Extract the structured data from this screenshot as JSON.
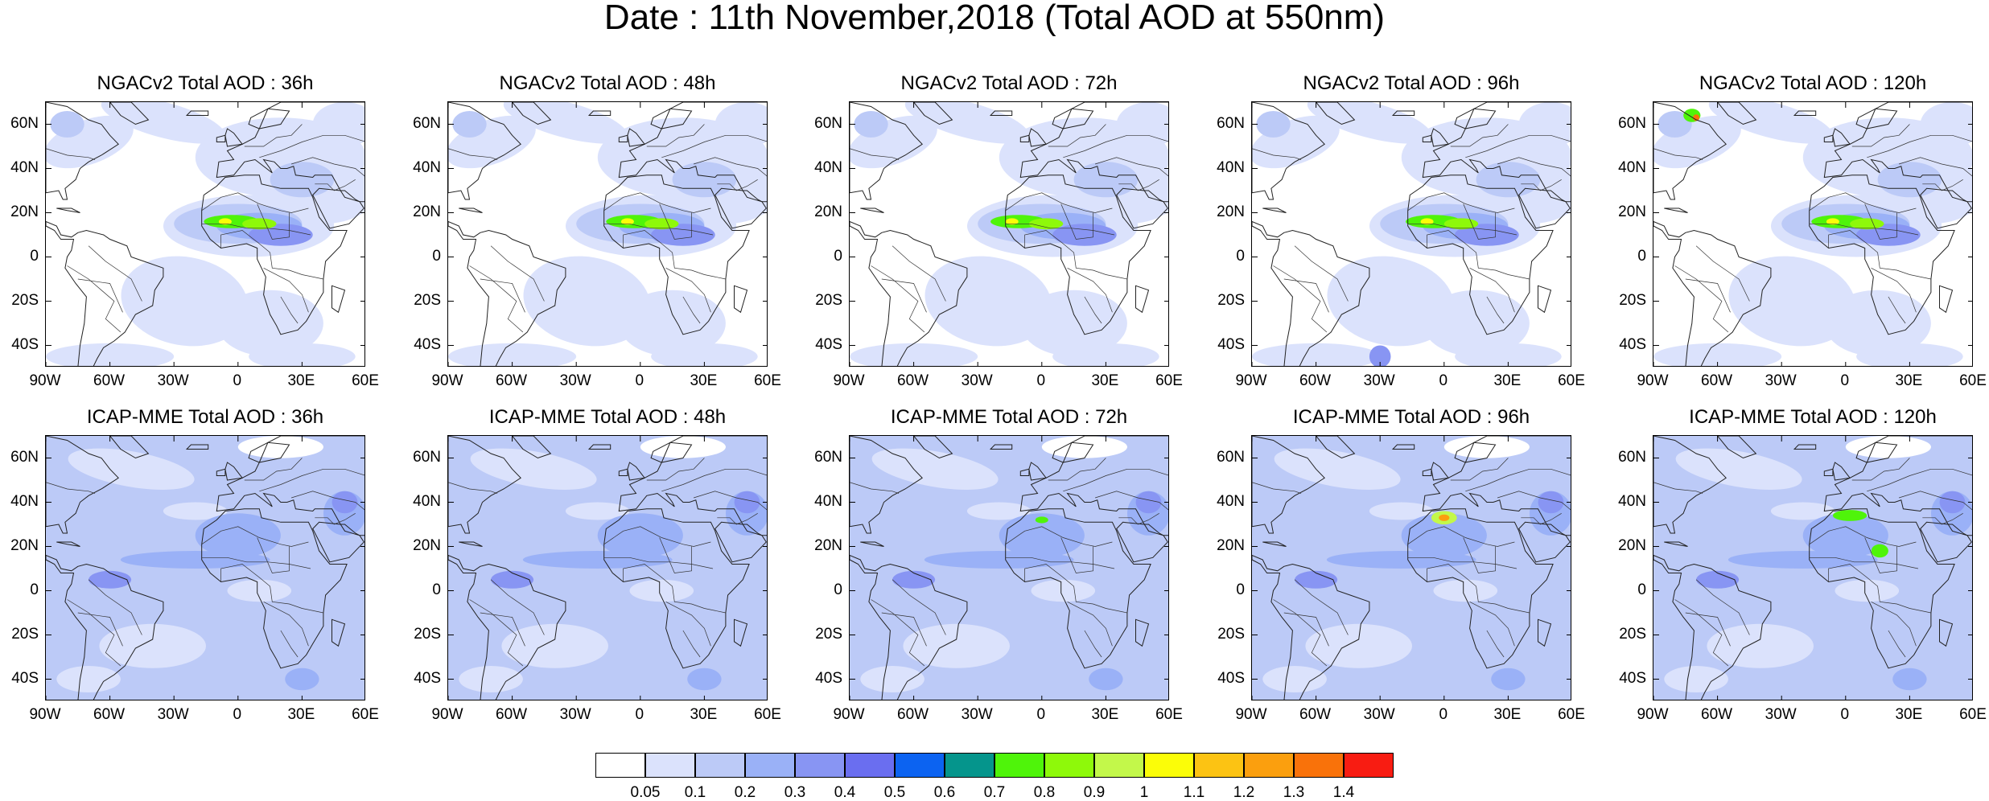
{
  "title": "Date : 11th November,2018 (Total AOD at 550nm)",
  "lat_labels": [
    "60N",
    "40N",
    "20N",
    "0",
    "20S",
    "40S"
  ],
  "lon_labels": [
    "90W",
    "60W",
    "30W",
    "0",
    "30E",
    "60E"
  ],
  "panels": [
    {
      "title": "NGACv2 Total AOD : 36h",
      "model": "NGACv2",
      "lead": "36h",
      "row": 0,
      "col": 0
    },
    {
      "title": "NGACv2 Total AOD : 48h",
      "model": "NGACv2",
      "lead": "48h",
      "row": 0,
      "col": 1
    },
    {
      "title": "NGACv2 Total AOD : 72h",
      "model": "NGACv2",
      "lead": "72h",
      "row": 0,
      "col": 2
    },
    {
      "title": "NGACv2 Total AOD : 96h",
      "model": "NGACv2",
      "lead": "96h",
      "row": 0,
      "col": 3
    },
    {
      "title": "NGACv2 Total AOD : 120h",
      "model": "NGACv2",
      "lead": "120h",
      "row": 0,
      "col": 4
    },
    {
      "title": "ICAP-MME Total AOD : 36h",
      "model": "ICAP-MME",
      "lead": "36h",
      "row": 1,
      "col": 0
    },
    {
      "title": "ICAP-MME Total AOD : 48h",
      "model": "ICAP-MME",
      "lead": "48h",
      "row": 1,
      "col": 1
    },
    {
      "title": "ICAP-MME Total AOD : 72h",
      "model": "ICAP-MME",
      "lead": "72h",
      "row": 1,
      "col": 2
    },
    {
      "title": "ICAP-MME Total AOD : 96h",
      "model": "ICAP-MME",
      "lead": "96h",
      "row": 1,
      "col": 3
    },
    {
      "title": "ICAP-MME Total AOD : 120h",
      "model": "ICAP-MME",
      "lead": "120h",
      "row": 1,
      "col": 4
    }
  ],
  "colorbar": {
    "colors": [
      "#ffffff",
      "#dbe2fc",
      "#bccaf7",
      "#9ab1f7",
      "#8895f3",
      "#6a6ef0",
      "#0c63f1",
      "#05958c",
      "#4ff40a",
      "#8ef90a",
      "#c3f84a",
      "#fbfd08",
      "#fcc313",
      "#fb9f0e",
      "#f9720a",
      "#f81c12"
    ],
    "labels": [
      "0.05",
      "0.1",
      "0.2",
      "0.3",
      "0.4",
      "0.5",
      "0.6",
      "0.7",
      "0.8",
      "0.9",
      "1",
      "1.1",
      "1.2",
      "1.3",
      "1.4"
    ]
  }
}
